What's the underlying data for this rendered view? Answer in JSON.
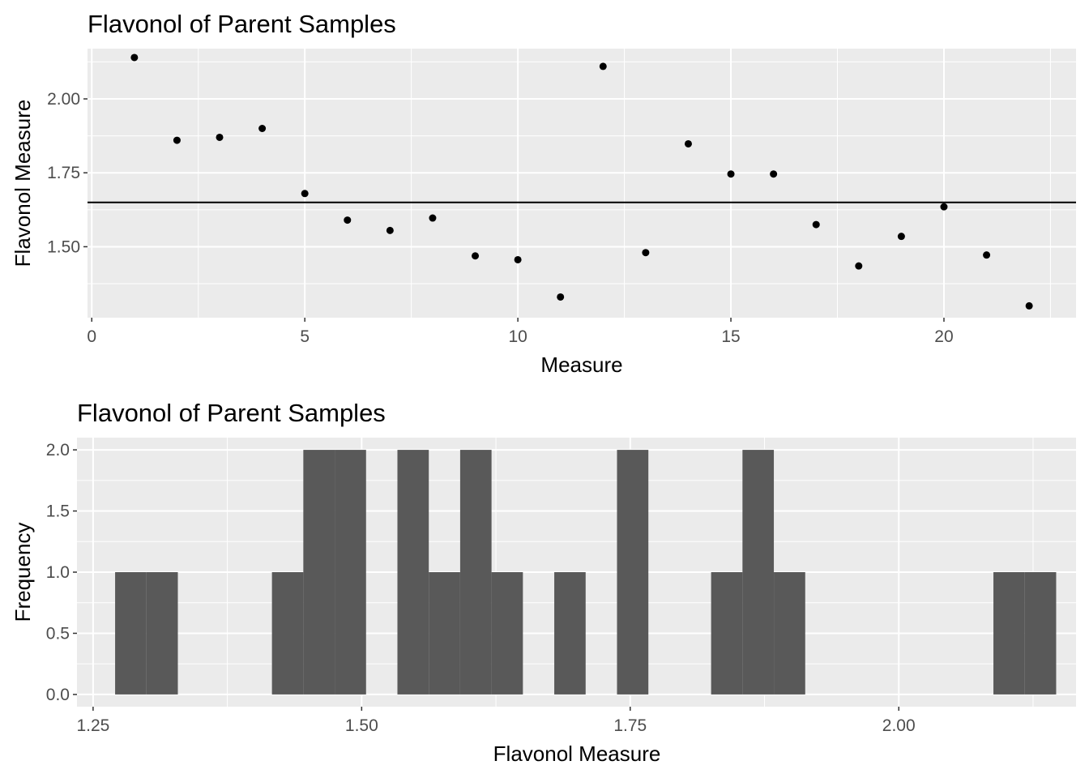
{
  "chart_data": [
    {
      "type": "scatter",
      "title": "Flavonol of Parent Samples",
      "xlabel": "Measure",
      "ylabel": "Flavonol Measure",
      "xlim": [
        -0.1,
        23.1
      ],
      "ylim": [
        1.26,
        2.17
      ],
      "grid": true,
      "xticks": [
        0,
        5,
        10,
        15,
        20
      ],
      "xtick_labels": [
        "0",
        "5",
        "10",
        "15",
        "20"
      ],
      "yticks": [
        1.5,
        1.75,
        2.0
      ],
      "ytick_labels": [
        "1.50",
        "1.75",
        "2.00"
      ],
      "x": [
        1,
        2,
        3,
        4,
        5,
        6,
        7,
        8,
        9,
        10,
        11,
        12,
        13,
        14,
        15,
        16,
        17,
        18,
        19,
        20,
        21,
        22
      ],
      "y": [
        2.14,
        1.86,
        1.87,
        1.9,
        1.68,
        1.59,
        1.555,
        1.597,
        1.469,
        1.456,
        1.33,
        2.11,
        1.48,
        1.848,
        1.746,
        1.746,
        1.575,
        1.435,
        1.535,
        1.635,
        1.472,
        1.3
      ],
      "hline": 1.65
    },
    {
      "type": "bar",
      "subtype": "histogram",
      "title": "Flavonol of Parent Samples",
      "xlabel": "Flavonol Measure",
      "ylabel": "Frequency",
      "xlim": [
        1.235,
        2.165
      ],
      "ylim": [
        -0.1,
        2.1
      ],
      "grid": true,
      "xticks": [
        1.25,
        1.5,
        1.75,
        2.0
      ],
      "xtick_labels": [
        "1.25",
        "1.50",
        "1.75",
        "2.00"
      ],
      "yticks": [
        0,
        0.5,
        1.0,
        1.5,
        2.0
      ],
      "ytick_labels": [
        "0.0",
        "0.5",
        "1.0",
        "1.5",
        "2.0"
      ],
      "bin_width": 0.0292,
      "bins": [
        {
          "x0": 1.2705,
          "x1": 1.2997,
          "count": 1
        },
        {
          "x0": 1.2997,
          "x1": 1.3289,
          "count": 1
        },
        {
          "x0": 1.4165,
          "x1": 1.4457,
          "count": 1
        },
        {
          "x0": 1.4457,
          "x1": 1.4749,
          "count": 2
        },
        {
          "x0": 1.4749,
          "x1": 1.5041,
          "count": 2
        },
        {
          "x0": 1.5333,
          "x1": 1.5625,
          "count": 2
        },
        {
          "x0": 1.5625,
          "x1": 1.5917,
          "count": 1
        },
        {
          "x0": 1.5917,
          "x1": 1.6209,
          "count": 2
        },
        {
          "x0": 1.6209,
          "x1": 1.6501,
          "count": 1
        },
        {
          "x0": 1.6793,
          "x1": 1.7085,
          "count": 1
        },
        {
          "x0": 1.7377,
          "x1": 1.7669,
          "count": 2
        },
        {
          "x0": 1.8253,
          "x1": 1.8545,
          "count": 1
        },
        {
          "x0": 1.8545,
          "x1": 1.8837,
          "count": 2
        },
        {
          "x0": 1.8837,
          "x1": 1.9129,
          "count": 1
        },
        {
          "x0": 2.0881,
          "x1": 2.1173,
          "count": 1
        },
        {
          "x0": 2.1173,
          "x1": 2.1465,
          "count": 1
        }
      ]
    }
  ]
}
